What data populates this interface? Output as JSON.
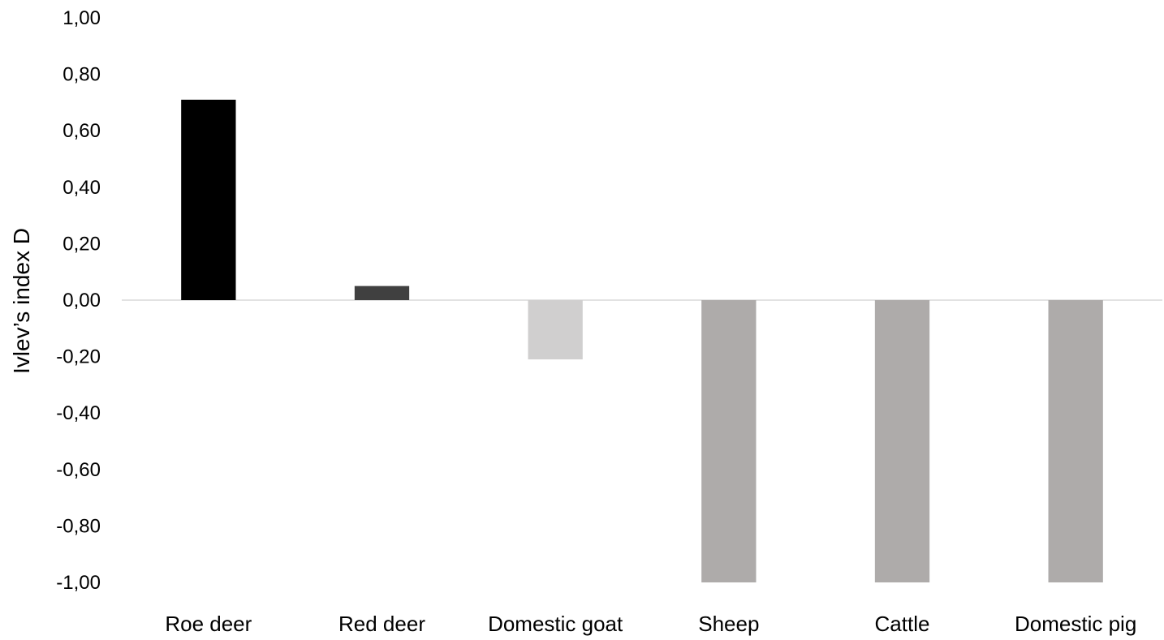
{
  "chart_data": {
    "type": "bar",
    "title": "",
    "xlabel": "",
    "ylabel": "Ivlev’s index D",
    "categories": [
      "Roe deer",
      "Red deer",
      "Domestic goat",
      "Sheep",
      "Cattle",
      "Domestic pig"
    ],
    "values": [
      0.71,
      0.05,
      -0.21,
      -1.0,
      -1.0,
      -1.0
    ],
    "bar_colors": [
      "#000000",
      "#404040",
      "#d0cfcf",
      "#aeabaa",
      "#aeabaa",
      "#aeabaa"
    ],
    "ylim": [
      -1.0,
      1.0
    ],
    "yticks": [
      1.0,
      0.8,
      0.6,
      0.4,
      0.2,
      0.0,
      -0.2,
      -0.4,
      -0.6,
      -0.8,
      -1.0
    ],
    "ytick_labels": [
      "1,00",
      "0,80",
      "0,60",
      "0,40",
      "0,20",
      "0,00",
      "-0,20",
      "-0,40",
      "-0,60",
      "-0,80",
      "-1,00"
    ],
    "grid": false,
    "legend": "none",
    "zero_line_color": "#d9d9d9"
  }
}
